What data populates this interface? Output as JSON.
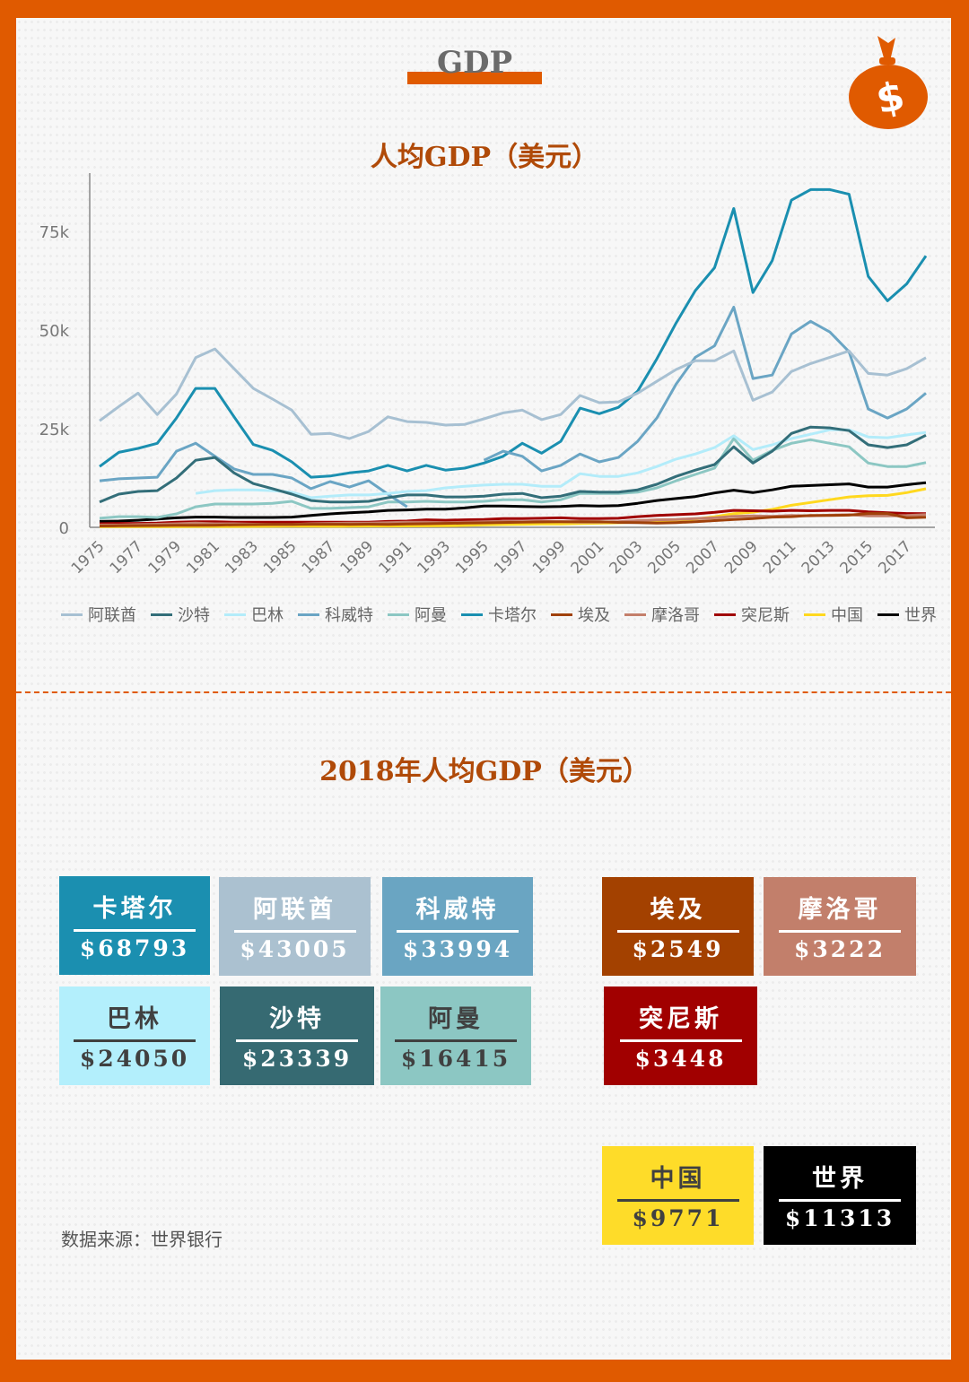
{
  "header": {
    "title": "GDP",
    "icon": "money-bag-icon"
  },
  "colors": {
    "frame": "#e05a00",
    "title_text": "#b04a08"
  },
  "chart_data": {
    "type": "line",
    "title": "人均GDP（美元）",
    "xlabel": "",
    "ylabel": "",
    "x": [
      1975,
      1976,
      1977,
      1978,
      1979,
      1980,
      1981,
      1982,
      1983,
      1984,
      1985,
      1986,
      1987,
      1988,
      1989,
      1990,
      1991,
      1992,
      1993,
      1994,
      1995,
      1996,
      1997,
      1998,
      1999,
      2000,
      2001,
      2002,
      2003,
      2004,
      2005,
      2006,
      2007,
      2008,
      2009,
      2010,
      2011,
      2012,
      2013,
      2014,
      2015,
      2016,
      2017,
      2018
    ],
    "x_tick_labels": [
      "1975",
      "1977",
      "1979",
      "1981",
      "1983",
      "1985",
      "1987",
      "1989",
      "1991",
      "1993",
      "1995",
      "1997",
      "1999",
      "2001",
      "2003",
      "2005",
      "2007",
      "2009",
      "2011",
      "2013",
      "2015",
      "2017"
    ],
    "y_ticks": [
      0,
      25000,
      50000,
      75000
    ],
    "y_tick_labels": [
      "0",
      "25k",
      "50k",
      "75k"
    ],
    "ylim": [
      0,
      89000
    ],
    "grid": false,
    "legend_position": "bottom",
    "series": [
      {
        "name": "阿联酋",
        "color": "#a7c0d2",
        "values": [
          27000,
          30600,
          34000,
          28600,
          33800,
          43000,
          45200,
          40200,
          35200,
          32500,
          29700,
          23600,
          23800,
          22500,
          24300,
          28000,
          26800,
          26600,
          25900,
          26100,
          27500,
          29000,
          29700,
          27300,
          28600,
          33400,
          31600,
          31800,
          34000,
          37000,
          40000,
          42200,
          42200,
          44700,
          32200,
          34300,
          39500,
          41500,
          43100,
          44700,
          39000,
          38600,
          40200,
          43005
        ]
      },
      {
        "name": "沙特",
        "color": "#336e79",
        "values": [
          6400,
          8400,
          9100,
          9300,
          12500,
          17000,
          17700,
          13800,
          11100,
          9800,
          8400,
          6800,
          6400,
          6400,
          6600,
          7500,
          8200,
          8200,
          7700,
          7700,
          7900,
          8400,
          8600,
          7500,
          7900,
          9100,
          8900,
          8900,
          9500,
          10900,
          12900,
          14500,
          15900,
          20400,
          16300,
          19300,
          23800,
          25400,
          25200,
          24500,
          20900,
          20200,
          20900,
          23339
        ]
      },
      {
        "name": "巴林",
        "color": "#b3ecfa",
        "values": [
          null,
          null,
          null,
          null,
          null,
          8600,
          9300,
          9500,
          9500,
          9300,
          8900,
          7500,
          7900,
          8200,
          8200,
          8600,
          9100,
          9300,
          10000,
          10400,
          10700,
          10900,
          10900,
          10400,
          10400,
          13600,
          12900,
          12900,
          13800,
          15400,
          17300,
          18600,
          20200,
          23200,
          19700,
          20900,
          22500,
          23600,
          24700,
          24700,
          22900,
          22700,
          23400,
          24050
        ]
      },
      {
        "name": "科威特",
        "color": "#6aa5c4",
        "values": [
          11800,
          12300,
          12500,
          12700,
          19300,
          21300,
          18000,
          14800,
          13400,
          13400,
          12500,
          9800,
          11600,
          10200,
          11800,
          8400,
          5200,
          null,
          null,
          null,
          17000,
          19300,
          18000,
          14300,
          15700,
          18600,
          16600,
          17700,
          21800,
          27700,
          36300,
          43100,
          46000,
          55800,
          37700,
          38600,
          49000,
          52200,
          49500,
          44500,
          30000,
          27700,
          30000,
          33994
        ]
      },
      {
        "name": "阿曼",
        "color": "#8cc7c3",
        "values": [
          2300,
          2700,
          2700,
          2500,
          3400,
          5200,
          5900,
          5900,
          5900,
          6100,
          6600,
          4800,
          4800,
          5000,
          5200,
          6400,
          6400,
          6600,
          6400,
          6400,
          6600,
          7000,
          7000,
          6400,
          7000,
          8600,
          8600,
          8600,
          8900,
          10000,
          11800,
          13400,
          15000,
          22500,
          17000,
          19500,
          21300,
          22200,
          21300,
          20400,
          16300,
          15400,
          15400,
          16415
        ]
      },
      {
        "name": "卡塔尔",
        "color": "#1a8fb0",
        "values": [
          15400,
          19000,
          20000,
          21300,
          27700,
          35200,
          35200,
          28000,
          21000,
          19500,
          16600,
          12700,
          13000,
          13800,
          14300,
          15700,
          14300,
          15700,
          14500,
          15000,
          16300,
          18000,
          21300,
          18800,
          21800,
          30200,
          28800,
          30400,
          34500,
          42700,
          51800,
          60000,
          65800,
          80800,
          59500,
          67600,
          82900,
          85600,
          85600,
          84400,
          63600,
          57400,
          61700,
          68793
        ]
      },
      {
        "name": "埃及",
        "color": "#a0410a",
        "values": [
          330,
          390,
          440,
          450,
          490,
          500,
          550,
          630,
          680,
          720,
          740,
          770,
          780,
          750,
          800,
          760,
          870,
          920,
          1000,
          1060,
          1130,
          1220,
          1320,
          1360,
          1420,
          1450,
          1400,
          1250,
          1200,
          1100,
          1200,
          1400,
          1700,
          2000,
          2200,
          2600,
          2700,
          3000,
          3000,
          3100,
          3500,
          3500,
          2400,
          2549
        ]
      },
      {
        "name": "摩洛哥",
        "color": "#c47f6b",
        "values": [
          600,
          600,
          700,
          800,
          900,
          1100,
          900,
          900,
          800,
          700,
          700,
          900,
          1000,
          1100,
          1100,
          1200,
          1300,
          1300,
          1200,
          1300,
          1400,
          1500,
          1400,
          1500,
          1400,
          1300,
          1300,
          1400,
          1700,
          1900,
          2000,
          2200,
          2400,
          2800,
          2900,
          2800,
          3000,
          2900,
          3100,
          3200,
          2900,
          2900,
          3000,
          3222
        ]
      },
      {
        "name": "突尼斯",
        "color": "#a00000",
        "values": [
          900,
          1000,
          1000,
          1100,
          1300,
          1400,
          1400,
          1300,
          1300,
          1300,
          1300,
          1300,
          1300,
          1300,
          1300,
          1500,
          1600,
          1900,
          1800,
          1900,
          2000,
          2200,
          2200,
          2300,
          2400,
          2200,
          2200,
          2300,
          2700,
          3000,
          3200,
          3400,
          3800,
          4300,
          4200,
          4100,
          4300,
          4200,
          4300,
          4300,
          3900,
          3700,
          3500,
          3448
        ]
      },
      {
        "name": "中国",
        "color": "#ffd81f",
        "values": [
          180,
          160,
          190,
          160,
          180,
          200,
          200,
          200,
          220,
          250,
          290,
          280,
          250,
          280,
          310,
          320,
          330,
          370,
          380,
          470,
          610,
          710,
          780,
          830,
          870,
          960,
          1050,
          1150,
          1290,
          1510,
          1750,
          2100,
          2690,
          3470,
          3830,
          4550,
          5600,
          6300,
          7000,
          7700,
          8000,
          8100,
          8800,
          9771
        ]
      },
      {
        "name": "世界",
        "color": "#000000",
        "values": [
          1500,
          1600,
          1800,
          2100,
          2400,
          2600,
          2600,
          2500,
          2500,
          2500,
          2600,
          3000,
          3400,
          3700,
          3900,
          4300,
          4400,
          4600,
          4600,
          4900,
          5400,
          5400,
          5300,
          5200,
          5300,
          5500,
          5400,
          5500,
          6100,
          6800,
          7300,
          7800,
          8700,
          9400,
          8800,
          9500,
          10400,
          10600,
          10800,
          11000,
          10200,
          10200,
          10800,
          11313
        ]
      }
    ]
  },
  "summary": {
    "title": "2018年人均GDP（美元）",
    "tiles": [
      {
        "name": "卡塔尔",
        "value": "$68793",
        "bg": "#1b8fb0",
        "fg": "#ffffff"
      },
      {
        "name": "阿联酋",
        "value": "$43005",
        "bg": "#abc1d0",
        "fg": "#ffffff"
      },
      {
        "name": "科威特",
        "value": "$33994",
        "bg": "#6aa5c2",
        "fg": "#ffffff"
      },
      {
        "name": "埃及",
        "value": "$2549",
        "bg": "#a34100",
        "fg": "#ffffff"
      },
      {
        "name": "摩洛哥",
        "value": "$3222",
        "bg": "#c27f6b",
        "fg": "#ffffff"
      },
      {
        "name": "巴林",
        "value": "$24050",
        "bg": "#b3effc",
        "fg": "#404040"
      },
      {
        "name": "沙特",
        "value": "$23339",
        "bg": "#366a72",
        "fg": "#ffffff"
      },
      {
        "name": "阿曼",
        "value": "$16415",
        "bg": "#8cc7c3",
        "fg": "#404040"
      },
      {
        "name": "突尼斯",
        "value": "$3448",
        "bg": "#a10000",
        "fg": "#ffffff"
      },
      {
        "name": "中国",
        "value": "$9771",
        "bg": "#fedc29",
        "fg": "#404040"
      },
      {
        "name": "世界",
        "value": "$11313",
        "bg": "#000000",
        "fg": "#ffffff"
      }
    ]
  },
  "footer": {
    "source": "数据来源：世界银行"
  }
}
